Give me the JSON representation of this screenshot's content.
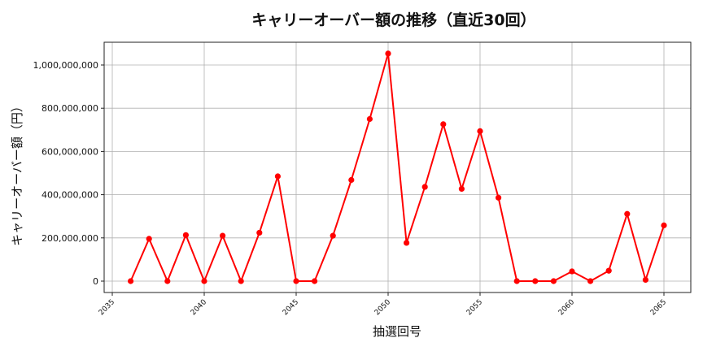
{
  "chart_data": {
    "type": "line",
    "title": "キャリーオーバー額の推移（直近30回）",
    "xlabel": "抽選回号",
    "ylabel": "キャリーオーバー額（円）",
    "x": [
      2036,
      2037,
      2038,
      2039,
      2040,
      2041,
      2042,
      2043,
      2044,
      2045,
      2046,
      2047,
      2048,
      2049,
      2050,
      2051,
      2052,
      2053,
      2054,
      2055,
      2056,
      2057,
      2058,
      2059,
      2060,
      2061,
      2062,
      2063,
      2064,
      2065
    ],
    "series": [
      {
        "name": "キャリーオーバー額",
        "color": "#ff0000",
        "marker": "circle",
        "values": [
          0,
          196000000,
          0,
          213000000,
          0,
          210000000,
          0,
          224000000,
          485000000,
          0,
          0,
          210000000,
          468000000,
          750000000,
          1053000000,
          177000000,
          436000000,
          726000000,
          427000000,
          694000000,
          386000000,
          0,
          0,
          0,
          45000000,
          0,
          48000000,
          311000000,
          6000000,
          258000000
        ]
      }
    ],
    "xticks": [
      2035,
      2040,
      2045,
      2050,
      2055,
      2060,
      2065
    ],
    "xtick_labels": [
      "2035",
      "2040",
      "2045",
      "2050",
      "2055",
      "2060",
      "2065"
    ],
    "xtick_rotation": 45,
    "yticks": [
      0,
      200000000,
      400000000,
      600000000,
      800000000,
      1000000000
    ],
    "ytick_labels": [
      "0",
      "200,000,000",
      "400,000,000",
      "600,000,000",
      "800,000,000",
      "1,000,000,000"
    ],
    "xlim": [
      2033.6,
      2066.5
    ],
    "ylim": [
      -53000000,
      1105000000
    ],
    "grid": true,
    "legend": null
  }
}
